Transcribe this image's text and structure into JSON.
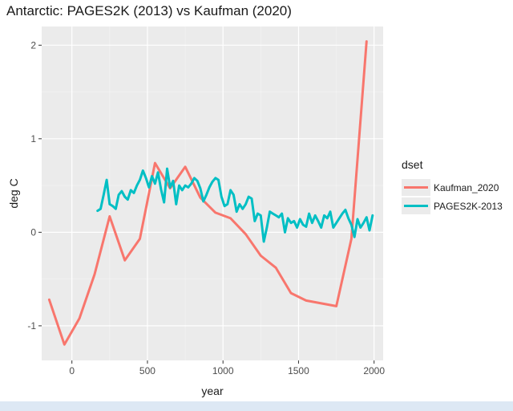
{
  "chart_data": {
    "type": "line",
    "title": "Antarctic: PAGES2K (2013) vs Kaufman (2020)",
    "xlabel": "year",
    "ylabel": "deg C",
    "xlim": [
      -200,
      2060
    ],
    "ylim": [
      -1.37,
      2.2
    ],
    "x_ticks": [
      0,
      500,
      1000,
      1500,
      2000
    ],
    "x_tick_labels": [
      "0",
      "500",
      "1000",
      "1500",
      "2000"
    ],
    "y_ticks": [
      -1,
      0,
      1,
      2
    ],
    "y_tick_labels": [
      "-1",
      "0",
      "1",
      "2"
    ],
    "grid": true,
    "legend": {
      "title": "dset",
      "placement": "right"
    },
    "series": [
      {
        "name": "Kaufman_2020",
        "color": "#f8766d",
        "x": [
          -150,
          -50,
          50,
          150,
          250,
          350,
          450,
          550,
          650,
          750,
          850,
          950,
          1050,
          1150,
          1250,
          1350,
          1450,
          1550,
          1650,
          1750,
          1850,
          1950
        ],
        "y": [
          -0.72,
          -1.2,
          -0.92,
          -0.45,
          0.17,
          -0.3,
          -0.07,
          0.74,
          0.47,
          0.7,
          0.37,
          0.21,
          0.15,
          -0.02,
          -0.25,
          -0.38,
          -0.65,
          -0.73,
          -0.76,
          -0.79,
          -0.07,
          2.04
        ]
      },
      {
        "name": "PAGES2K-2013",
        "color": "#00bfc4",
        "x": [
          170,
          190,
          210,
          230,
          250,
          270,
          290,
          310,
          330,
          350,
          370,
          390,
          410,
          430,
          450,
          470,
          490,
          510,
          530,
          550,
          570,
          590,
          610,
          630,
          650,
          670,
          690,
          710,
          730,
          750,
          770,
          790,
          810,
          830,
          850,
          870,
          890,
          910,
          930,
          950,
          970,
          990,
          1010,
          1030,
          1050,
          1070,
          1090,
          1110,
          1130,
          1150,
          1170,
          1190,
          1210,
          1230,
          1250,
          1270,
          1290,
          1310,
          1330,
          1350,
          1370,
          1390,
          1410,
          1430,
          1450,
          1470,
          1490,
          1510,
          1530,
          1550,
          1570,
          1590,
          1610,
          1630,
          1650,
          1670,
          1690,
          1710,
          1730,
          1750,
          1770,
          1790,
          1810,
          1830,
          1850,
          1870,
          1890,
          1910,
          1930,
          1950,
          1970,
          1990
        ],
        "y": [
          0.23,
          0.25,
          0.4,
          0.56,
          0.3,
          0.28,
          0.25,
          0.4,
          0.44,
          0.38,
          0.35,
          0.45,
          0.42,
          0.5,
          0.56,
          0.66,
          0.58,
          0.48,
          0.6,
          0.52,
          0.64,
          0.46,
          0.32,
          0.68,
          0.48,
          0.55,
          0.3,
          0.5,
          0.45,
          0.5,
          0.48,
          0.52,
          0.58,
          0.55,
          0.47,
          0.33,
          0.4,
          0.48,
          0.54,
          0.58,
          0.56,
          0.38,
          0.28,
          0.3,
          0.45,
          0.4,
          0.22,
          0.3,
          0.25,
          0.3,
          0.38,
          0.36,
          0.12,
          0.2,
          0.18,
          -0.1,
          0.05,
          0.22,
          0.2,
          0.18,
          0.16,
          0.2,
          0.0,
          0.15,
          0.1,
          0.12,
          0.05,
          0.14,
          0.08,
          0.06,
          0.2,
          0.1,
          0.18,
          0.12,
          0.05,
          0.18,
          0.15,
          0.22,
          0.05,
          0.1,
          0.15,
          0.2,
          0.24,
          0.15,
          0.08,
          -0.05,
          0.14,
          0.05,
          0.1,
          0.16,
          0.02,
          0.18
        ]
      }
    ]
  }
}
